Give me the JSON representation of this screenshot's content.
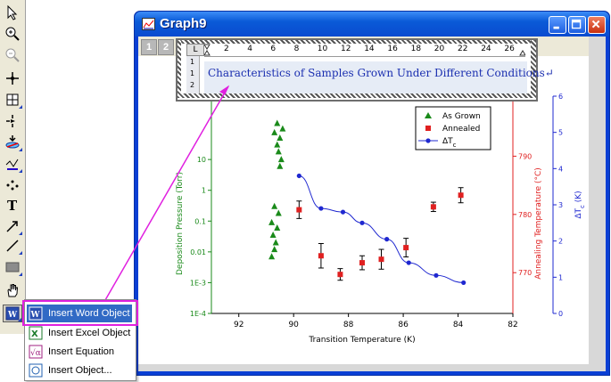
{
  "window": {
    "title": "Graph9",
    "layer_tabs": [
      "1",
      "2"
    ]
  },
  "word_object": {
    "caption": "Characteristics of Samples Grown Under Different Conditions↵",
    "corner_glyph": "L",
    "ruler_ticks": [
      "2",
      "4",
      "6",
      "8",
      "10",
      "12",
      "14",
      "16",
      "18",
      "20",
      "22",
      "24",
      "26"
    ],
    "vruler_ticks": [
      "1",
      "1",
      "2"
    ]
  },
  "context_menu": {
    "items": [
      {
        "label": "Insert Word Object",
        "icon": "word-object-icon",
        "selected": true
      },
      {
        "label": "Insert Excel Object",
        "icon": "excel-object-icon",
        "selected": false
      },
      {
        "label": "Insert Equation",
        "icon": "equation-icon",
        "selected": false
      },
      {
        "label": "Insert Object...",
        "icon": "object-icon",
        "selected": false
      }
    ]
  },
  "toolbar": {
    "tools": [
      "pointer-icon",
      "zoom-in-icon",
      "zoom-out-icon",
      "screen-reader-icon",
      "data-reader-icon",
      "data-selector-icon",
      "mask-icon",
      "draw-data-icon",
      "region-icon",
      "text-icon",
      "arrow-icon",
      "line-icon",
      "rectangle-icon",
      "hand-icon",
      "insert-object-icon"
    ]
  },
  "colors": {
    "green": "#1a8a1a",
    "red": "#e02020",
    "blue": "#1f28d0",
    "accent": "#e020e0",
    "selection": "#316ac5"
  },
  "chart_data": {
    "type": "scatter",
    "xlabel": "Transition Temperature (K)",
    "xlim": [
      93,
      82
    ],
    "x_ticks": [
      "92",
      "90",
      "88",
      "86",
      "84",
      "82"
    ],
    "y_left": {
      "label": "Deposition Pressure (Torr)",
      "scale": "log",
      "lim": [
        0.0001,
        1000
      ],
      "ticks": [
        "1E-4",
        "1E-3",
        "0.01",
        "0.1",
        "1",
        "10"
      ]
    },
    "y_right1": {
      "label": "Annealing Temperature (°C)",
      "lim": [
        763,
        800
      ],
      "ticks": [
        "770",
        "780",
        "790"
      ]
    },
    "y_right2": {
      "label": "ΔT",
      "label_sub": "c",
      "label_suffix": " (K)",
      "lim": [
        0,
        6
      ],
      "ticks": [
        "0",
        "1",
        "2",
        "3",
        "4",
        "5",
        "6"
      ]
    },
    "legend": {
      "position": "top-right",
      "entries": [
        {
          "name": "As Grown",
          "marker": "triangle",
          "color": "#1a8a1a"
        },
        {
          "name": "Annealed",
          "marker": "square",
          "color": "#e02020"
        },
        {
          "name": "ΔT",
          "sub": "c",
          "marker": "circle-line",
          "color": "#1f28d0"
        }
      ]
    },
    "series": [
      {
        "name": "As Grown",
        "axis": "left",
        "points": [
          [
            90.6,
            150
          ],
          [
            90.4,
            100
          ],
          [
            90.7,
            75
          ],
          [
            90.5,
            50
          ],
          [
            90.6,
            30
          ],
          [
            90.55,
            18
          ],
          [
            90.45,
            10
          ],
          [
            90.5,
            6
          ],
          [
            90.7,
            0.3
          ],
          [
            90.55,
            0.18
          ],
          [
            90.8,
            0.09
          ],
          [
            90.6,
            0.06
          ],
          [
            90.75,
            0.035
          ],
          [
            90.65,
            0.02
          ],
          [
            90.7,
            0.012
          ],
          [
            90.8,
            0.007
          ]
        ]
      },
      {
        "name": "Annealed",
        "axis": "right1",
        "points": [
          [
            89.8,
            780.8
          ],
          [
            89.0,
            772.9
          ],
          [
            88.3,
            769.7
          ],
          [
            87.5,
            771.7
          ],
          [
            86.8,
            772.3
          ],
          [
            85.9,
            774.3
          ],
          [
            84.9,
            781.3
          ],
          [
            83.9,
            783.3
          ]
        ],
        "errors": [
          1.5,
          2.1,
          1.0,
          1.2,
          1.7,
          1.6,
          0.8,
          1.3
        ]
      },
      {
        "name": "ΔT",
        "sub": "c",
        "axis": "right2",
        "points": [
          [
            89.8,
            3.8
          ],
          [
            89.0,
            2.9
          ],
          [
            88.2,
            2.8
          ],
          [
            87.5,
            2.5
          ],
          [
            86.6,
            2.05
          ],
          [
            85.8,
            1.4
          ],
          [
            84.8,
            1.05
          ],
          [
            83.8,
            0.85
          ]
        ]
      }
    ]
  }
}
